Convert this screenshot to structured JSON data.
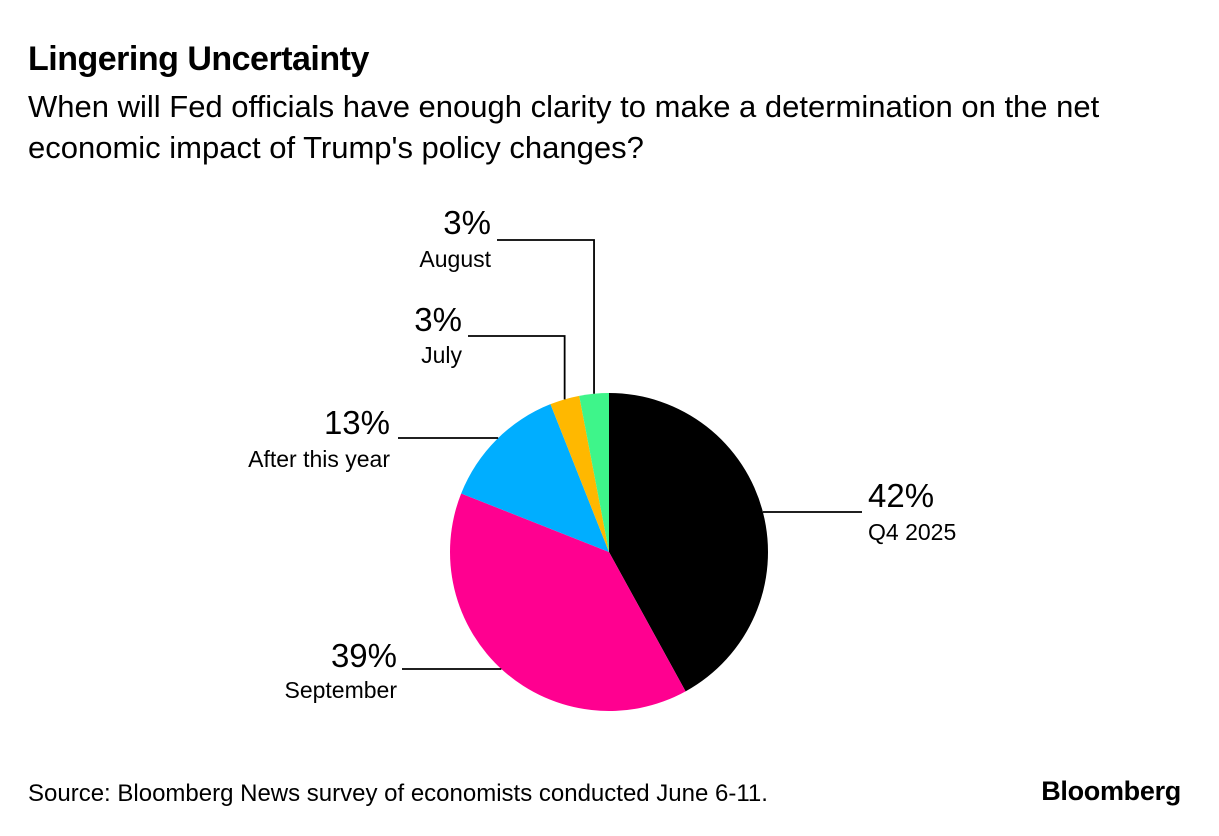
{
  "title": "Lingering Uncertainty",
  "subtitle": "When will Fed officials have enough clarity to make a determination on the net economic impact of Trump's policy changes?",
  "source": "Source: Bloomberg News survey of economists conducted June 6-11.",
  "brand": "Bloomberg",
  "chart_data": {
    "type": "pie",
    "start_angle": "12 o'clock",
    "direction": "clockwise",
    "slices": [
      {
        "label": "Q4 2025",
        "value": 42,
        "display": "42%",
        "color": "#000000"
      },
      {
        "label": "September",
        "value": 39,
        "display": "39%",
        "color": "#ff0090"
      },
      {
        "label": "After this year",
        "value": 13,
        "display": "13%",
        "color": "#00aeff"
      },
      {
        "label": "July",
        "value": 3,
        "display": "3%",
        "color": "#ffb800"
      },
      {
        "label": "August",
        "value": 3,
        "display": "3%",
        "color": "#3ef58a"
      }
    ]
  }
}
